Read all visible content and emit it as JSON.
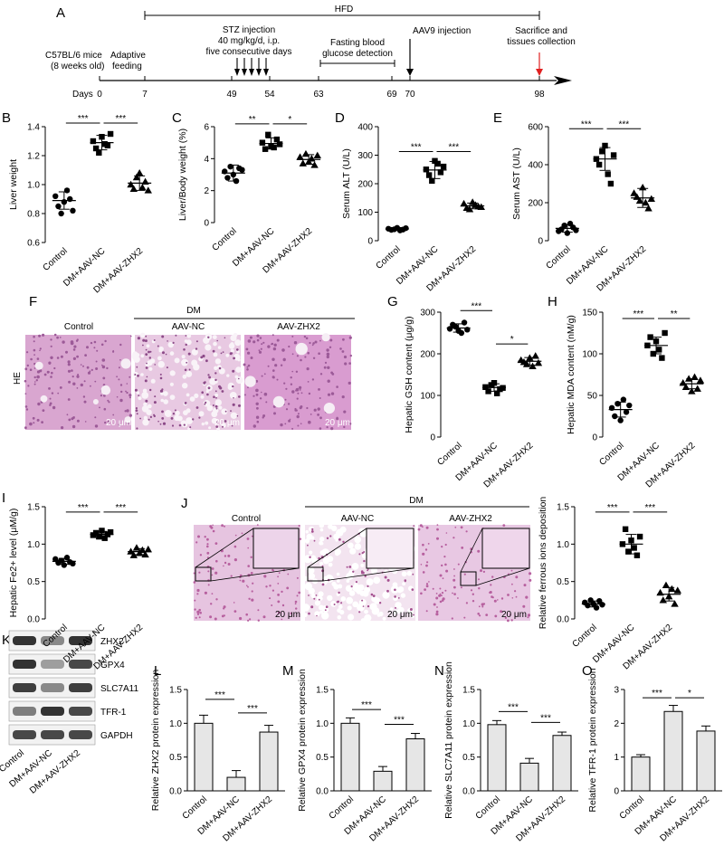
{
  "groups": [
    "Control",
    "DM+AAV-NC",
    "DM+AAV-ZHX2"
  ],
  "colors": {
    "ink": "#000000",
    "bar_fill": "#e6e6e6",
    "arrow_red": "#e02020",
    "he_pink": "#cf8fc4",
    "he_bg": "#f1dced"
  },
  "timeline": {
    "panel_label": "A",
    "hfd_label": "HFD",
    "mice_label_1": "C57BL/6 mice",
    "mice_label_2": "(8 weeks old)",
    "adaptive_1": "Adaptive",
    "adaptive_2": "feeding",
    "days_label": "Days",
    "stz_1": "STZ injection",
    "stz_2": "40 mg/kg/d, i.p.",
    "stz_3": "five consecutive days",
    "fasting_1": "Fasting blood",
    "fasting_2": "glucose detection",
    "aav9_label": "AAV9 injection",
    "sacrifice_1": "Sacrifice and",
    "sacrifice_2": "tissues collection",
    "days": [
      "0",
      "7",
      "49",
      "54",
      "63",
      "69",
      "70",
      "98"
    ]
  },
  "histology": {
    "f_label": "F",
    "j_label": "J",
    "dm_label": "DM",
    "stain_label": "HE",
    "col_labels": [
      "Control",
      "AAV-NC",
      "AAV-ZHX2"
    ],
    "scale_label": "20 μm"
  },
  "western": {
    "panel_label": "K",
    "bands": [
      "ZHX2",
      "GPX4",
      "SLC7A11",
      "TFR-1",
      "GAPDH"
    ],
    "lanes": [
      "Control",
      "DM+AAV-NC",
      "DM+AAV-ZHX2"
    ],
    "band_intensity": [
      [
        0.95,
        0.55,
        0.95
      ],
      [
        0.95,
        0.45,
        0.85
      ],
      [
        0.9,
        0.55,
        0.9
      ],
      [
        0.6,
        0.95,
        0.85
      ],
      [
        0.85,
        0.85,
        0.85
      ]
    ]
  },
  "chart_data": [
    {
      "id": "B",
      "type": "scatter",
      "ylabel": "Liver weight",
      "yticks": [
        "0.6",
        "0.8",
        "1.0",
        "1.2",
        "1.4"
      ],
      "ylim": [
        0.6,
        1.4
      ],
      "markers": [
        "circle",
        "square",
        "triangle"
      ],
      "points": [
        [
          0.92,
          0.85,
          0.8,
          0.88,
          0.96,
          0.9,
          0.82
        ],
        [
          1.3,
          1.25,
          1.22,
          1.33,
          1.28,
          1.27,
          1.35
        ],
        [
          1.0,
          0.97,
          1.05,
          1.08,
          0.98,
          1.02,
          0.96
        ]
      ],
      "means": [
        0.89,
        1.29,
        1.01
      ],
      "sds": [
        0.06,
        0.05,
        0.05
      ],
      "sig": [
        {
          "from": 0,
          "to": 1,
          "label": "***",
          "y": 1.4
        },
        {
          "from": 1,
          "to": 2,
          "label": "***",
          "y": 1.4
        }
      ]
    },
    {
      "id": "C",
      "type": "scatter",
      "ylabel": "Liver/Body weight (%)",
      "yticks": [
        "0",
        "2",
        "4",
        "6"
      ],
      "ylim": [
        0,
        6
      ],
      "markers": [
        "circle",
        "square",
        "triangle"
      ],
      "points": [
        [
          3.2,
          2.8,
          3.5,
          3.0,
          2.6,
          3.4,
          3.3
        ],
        [
          5.0,
          4.6,
          5.5,
          4.8,
          4.7,
          5.2,
          4.9
        ],
        [
          4.1,
          3.7,
          4.3,
          3.8,
          4.0,
          3.6,
          4.2
        ]
      ],
      "means": [
        3.1,
        4.95,
        3.95
      ],
      "sds": [
        0.5,
        0.35,
        0.3
      ],
      "sig": [
        {
          "from": 0,
          "to": 1,
          "label": "**",
          "y": 5.95
        },
        {
          "from": 1,
          "to": 2,
          "label": "*",
          "y": 5.95
        }
      ]
    },
    {
      "id": "D",
      "type": "scatter",
      "ylabel": "Serum ALT (U/L)",
      "yticks": [
        "0",
        "100",
        "200",
        "300",
        "400"
      ],
      "ylim": [
        0,
        400
      ],
      "markers": [
        "circle",
        "square",
        "triangle"
      ],
      "points": [
        [
          42,
          38,
          40,
          45,
          36,
          39,
          44
        ],
        [
          250,
          230,
          210,
          280,
          270,
          240,
          260
        ],
        [
          130,
          115,
          110,
          135,
          125,
          120,
          118
        ]
      ],
      "means": [
        41,
        248
      ],
      "sds": [
        5,
        30
      ],
      "means_all": [
        41,
        248,
        122
      ],
      "sds_all": [
        5,
        30,
        10
      ],
      "sig": [
        {
          "from": 0,
          "to": 1,
          "label": "***",
          "y": 300
        },
        {
          "from": 1,
          "to": 2,
          "label": "***",
          "y": 300
        }
      ]
    },
    {
      "id": "E",
      "type": "scatter",
      "ylabel": "Serum AST (U/L)",
      "yticks": [
        "0",
        "200",
        "400",
        "600"
      ],
      "ylim": [
        0,
        600
      ],
      "markers": [
        "circle",
        "square",
        "triangle"
      ],
      "points": [
        [
          50,
          60,
          80,
          40,
          90,
          70,
          55
        ],
        [
          430,
          400,
          470,
          500,
          350,
          300,
          450
        ],
        [
          250,
          230,
          210,
          280,
          200,
          170,
          220
        ]
      ],
      "means_all": [
        65,
        430,
        225
      ],
      "sds_all": [
        20,
        60,
        50
      ],
      "sig": [
        {
          "from": 0,
          "to": 1,
          "label": "***",
          "y": 570
        },
        {
          "from": 1,
          "to": 2,
          "label": "***",
          "y": 570
        }
      ]
    },
    {
      "id": "G",
      "type": "scatter",
      "ylabel": "Hepatic GSH content (μg/g)",
      "yticks": [
        "0",
        "100",
        "200",
        "300"
      ],
      "ylim": [
        0,
        300
      ],
      "markers": [
        "circle",
        "square",
        "triangle"
      ],
      "points": [
        [
          260,
          270,
          265,
          255,
          250,
          275,
          258
        ],
        [
          120,
          110,
          125,
          130,
          105,
          115,
          118
        ],
        [
          185,
          180,
          175,
          190,
          170,
          195,
          178
        ]
      ],
      "means_all": [
        262,
        119,
        182
      ],
      "sds_all": [
        10,
        9,
        9
      ],
      "sig": [
        {
          "from": 0,
          "to": 1,
          "label": "***",
          "y": 295
        },
        {
          "from": 1,
          "to": 2,
          "label": "*",
          "y": 215
        }
      ]
    },
    {
      "id": "H",
      "type": "scatter",
      "ylabel": "Hepatic MDA content (nM/g)",
      "yticks": [
        "0",
        "50",
        "100",
        "150"
      ],
      "ylim": [
        0,
        150
      ],
      "markers": [
        "circle",
        "square",
        "triangle"
      ],
      "points": [
        [
          35,
          25,
          40,
          20,
          45,
          30,
          38
        ],
        [
          110,
          120,
          100,
          115,
          105,
          95,
          125
        ],
        [
          65,
          60,
          70,
          55,
          72,
          58,
          68
        ]
      ],
      "means_all": [
        33,
        110,
        64
      ],
      "sds_all": [
        9,
        10,
        6
      ],
      "sig": [
        {
          "from": 0,
          "to": 1,
          "label": "***",
          "y": 138
        },
        {
          "from": 1,
          "to": 2,
          "label": "**",
          "y": 138
        }
      ]
    },
    {
      "id": "I",
      "type": "scatter",
      "ylabel": "Hepatic Fe2+ level (μM/g)",
      "yticks": [
        "0.0",
        "0.5",
        "1.0",
        "1.5"
      ],
      "ylim": [
        0,
        1.5
      ],
      "markers": [
        "circle",
        "square",
        "triangle"
      ],
      "points": [
        [
          0.8,
          0.75,
          0.78,
          0.72,
          0.82,
          0.76,
          0.74
        ],
        [
          1.12,
          1.15,
          1.1,
          1.18,
          1.08,
          1.13,
          1.16
        ],
        [
          0.9,
          0.85,
          0.95,
          0.88,
          0.92,
          0.86,
          0.93
        ]
      ],
      "means_all": [
        0.77,
        1.13,
        0.9
      ],
      "sds_all": [
        0.04,
        0.04,
        0.04
      ],
      "sig": [
        {
          "from": 0,
          "to": 1,
          "label": "***",
          "y": 1.38
        },
        {
          "from": 1,
          "to": 2,
          "label": "***",
          "y": 1.38
        }
      ]
    },
    {
      "id": "J2",
      "type": "scatter",
      "ylabel": "Relative ferrous ions deposition",
      "yticks": [
        "0.0",
        "0.5",
        "1.0",
        "1.5"
      ],
      "ylim": [
        0,
        1.5
      ],
      "markers": [
        "circle",
        "square",
        "triangle"
      ],
      "points": [
        [
          0.22,
          0.18,
          0.25,
          0.2,
          0.15,
          0.24,
          0.19
        ],
        [
          1.0,
          1.2,
          0.9,
          1.05,
          0.95,
          0.85,
          1.1
        ],
        [
          0.35,
          0.25,
          0.45,
          0.3,
          0.4,
          0.2,
          0.38
        ]
      ],
      "means_all": [
        0.2,
        1.0,
        0.33
      ],
      "sds_all": [
        0.04,
        0.13,
        0.09
      ],
      "sig": [
        {
          "from": 0,
          "to": 1,
          "label": "***",
          "y": 1.38
        },
        {
          "from": 1,
          "to": 2,
          "label": "***",
          "y": 1.38
        }
      ]
    },
    {
      "id": "L",
      "type": "bar",
      "ylabel": "Relative ZHX2 protein expression",
      "yticks": [
        "0.0",
        "0.5",
        "1.0",
        "1.5"
      ],
      "ylim": [
        0,
        1.5
      ],
      "values": [
        1.0,
        0.2,
        0.87
      ],
      "errors": [
        0.12,
        0.1,
        0.1
      ],
      "sig": [
        {
          "from": 0,
          "to": 1,
          "label": "***",
          "y": 1.3
        },
        {
          "from": 1,
          "to": 2,
          "label": "***",
          "y": 1.1
        }
      ]
    },
    {
      "id": "M",
      "type": "bar",
      "ylabel": "Relative GPX4 protein expression",
      "yticks": [
        "0.0",
        "0.5",
        "1.0",
        "1.5"
      ],
      "ylim": [
        0,
        1.5
      ],
      "values": [
        1.0,
        0.29,
        0.77
      ],
      "errors": [
        0.08,
        0.07,
        0.08
      ],
      "sig": [
        {
          "from": 0,
          "to": 1,
          "label": "***",
          "y": 1.15
        },
        {
          "from": 1,
          "to": 2,
          "label": "***",
          "y": 0.93
        }
      ]
    },
    {
      "id": "N",
      "type": "bar",
      "ylabel": "Relative SLC7A11 protein expression",
      "yticks": [
        "0.0",
        "0.5",
        "1.0",
        "1.5"
      ],
      "ylim": [
        0,
        1.5
      ],
      "values": [
        0.98,
        0.41,
        0.82
      ],
      "errors": [
        0.06,
        0.07,
        0.05
      ],
      "sig": [
        {
          "from": 0,
          "to": 1,
          "label": "***",
          "y": 1.12
        },
        {
          "from": 1,
          "to": 2,
          "label": "***",
          "y": 0.96
        }
      ]
    },
    {
      "id": "O",
      "type": "bar",
      "ylabel": "Relative TFR-1 protein expression",
      "yticks": [
        "0",
        "1",
        "2",
        "3"
      ],
      "ylim": [
        0,
        3
      ],
      "values": [
        1.0,
        2.35,
        1.77
      ],
      "errors": [
        0.07,
        0.18,
        0.15
      ],
      "sig": [
        {
          "from": 0,
          "to": 1,
          "label": "***",
          "y": 2.65
        },
        {
          "from": 1,
          "to": 2,
          "label": "*",
          "y": 2.65
        }
      ]
    }
  ]
}
